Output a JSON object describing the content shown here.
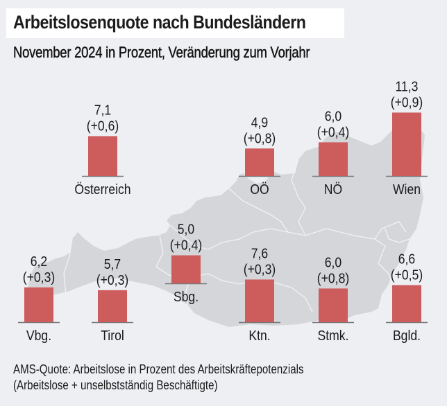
{
  "chart_data": {
    "type": "bar",
    "title": "Arbeitslosenquote nach Bundesländern",
    "subtitle": "November 2024 in Prozent, Veränderung zum Vorjahr",
    "unit": "Prozent",
    "categories": [
      "Österreich",
      "OÖ",
      "NÖ",
      "Wien",
      "Sbg.",
      "Vbg.",
      "Tirol",
      "Ktn.",
      "Stmk.",
      "Bgld."
    ],
    "series": [
      {
        "name": "Arbeitslosenquote",
        "values": [
          7.1,
          4.9,
          6.0,
          11.3,
          5.0,
          6.2,
          5.7,
          7.6,
          6.0,
          6.6
        ]
      },
      {
        "name": "Veränderung zum Vorjahr",
        "values": [
          0.6,
          0.8,
          0.4,
          0.9,
          0.4,
          0.3,
          0.3,
          0.3,
          0.8,
          0.5
        ]
      }
    ],
    "value_labels": [
      "7,1",
      "4,9",
      "6,0",
      "11,3",
      "5,0",
      "6,2",
      "5,7",
      "7,6",
      "6,0",
      "6,6"
    ],
    "change_labels": [
      "(+0,6)",
      "(+0,8)",
      "(+0,4)",
      "(+0,9)",
      "(+0,4)",
      "(+0,3)",
      "(+0,3)",
      "(+0,3)",
      "(+0,8)",
      "(+0,5)"
    ],
    "layout_note": "bars placed over a map of Austria at each state's location",
    "bar_color": "#cd5c5c",
    "baseline_color": "#777777",
    "map_color": "#d5d6da",
    "map_border_color": "#f2f2f4"
  },
  "footnote": {
    "line1": "AMS-Quote: Arbeitslose in Prozent des Arbeitskräftepotenzials",
    "line2": "(Arbeitslose + unselbstständig Beschäftigte)"
  }
}
